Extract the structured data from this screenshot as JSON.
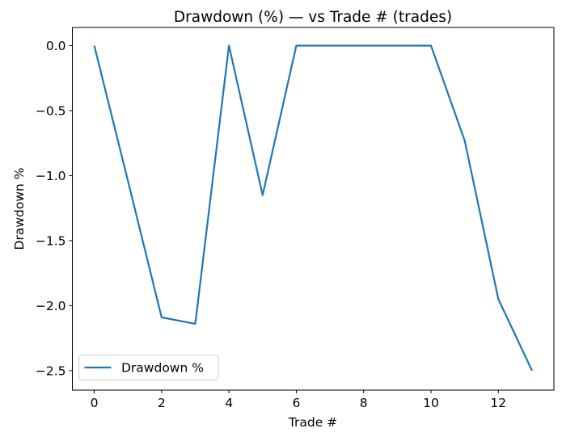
{
  "chart_data": {
    "type": "line",
    "title": "Drawdown (%) — vs Trade # (trades)",
    "xlabel": "Trade #",
    "ylabel": "Drawdown %",
    "x": [
      0,
      1,
      2,
      3,
      4,
      5,
      6,
      7,
      8,
      9,
      10,
      11,
      12,
      13
    ],
    "series": [
      {
        "name": "Drawdown %",
        "color": "#1f77b4",
        "values": [
          0.0,
          -1.04,
          -2.09,
          -2.14,
          0.0,
          -1.15,
          0.0,
          0.0,
          0.0,
          0.0,
          0.0,
          -0.73,
          -1.95,
          -2.5
        ]
      }
    ],
    "xlim": [
      -0.65,
      13.65
    ],
    "ylim": [
      -2.65,
      0.14
    ],
    "x_ticks": [
      0,
      2,
      4,
      6,
      8,
      10,
      12
    ],
    "x_tick_labels": [
      "0",
      "2",
      "4",
      "6",
      "8",
      "10",
      "12"
    ],
    "y_ticks": [
      0.0,
      -0.5,
      -1.0,
      -1.5,
      -2.0,
      -2.5
    ],
    "y_tick_labels": [
      "0.0",
      "−0.5",
      "−1.0",
      "−1.5",
      "−2.0",
      "−2.5"
    ],
    "grid": false,
    "legend": {
      "position": "lower left",
      "entries": [
        "Drawdown %"
      ]
    },
    "colors": {
      "line": "#1f77b4",
      "spine": "#000000",
      "legend_border": "#cccccc",
      "background": "#ffffff"
    }
  }
}
